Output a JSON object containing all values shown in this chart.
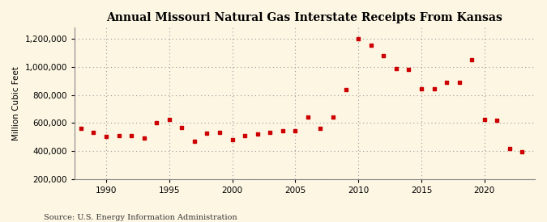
{
  "title": "Annual Missouri Natural Gas Interstate Receipts From Kansas",
  "ylabel": "Million Cubic Feet",
  "source": "Source: U.S. Energy Information Administration",
  "background_color": "#fdf6e3",
  "plot_background_color": "#fdf6e3",
  "marker_color": "#cc0000",
  "marker": "s",
  "marker_size": 3.5,
  "ylim": [
    200000,
    1280000
  ],
  "yticks": [
    200000,
    400000,
    600000,
    800000,
    1000000,
    1200000
  ],
  "xlim": [
    1987.5,
    2024
  ],
  "xticks": [
    1990,
    1995,
    2000,
    2005,
    2010,
    2015,
    2020
  ],
  "years": [
    1988,
    1989,
    1990,
    1991,
    1992,
    1993,
    1994,
    1995,
    1996,
    1997,
    1998,
    1999,
    2000,
    2001,
    2002,
    2003,
    2004,
    2005,
    2006,
    2007,
    2008,
    2009,
    2010,
    2011,
    2012,
    2013,
    2014,
    2015,
    2016,
    2017,
    2018,
    2019,
    2020,
    2021,
    2022,
    2023
  ],
  "values": [
    560000,
    530000,
    505000,
    510000,
    510000,
    490000,
    600000,
    625000,
    570000,
    470000,
    525000,
    535000,
    480000,
    510000,
    520000,
    530000,
    545000,
    545000,
    640000,
    560000,
    640000,
    840000,
    1200000,
    1155000,
    1080000,
    990000,
    980000,
    845000,
    845000,
    890000,
    890000,
    1050000,
    625000,
    620000,
    415000,
    395000
  ]
}
